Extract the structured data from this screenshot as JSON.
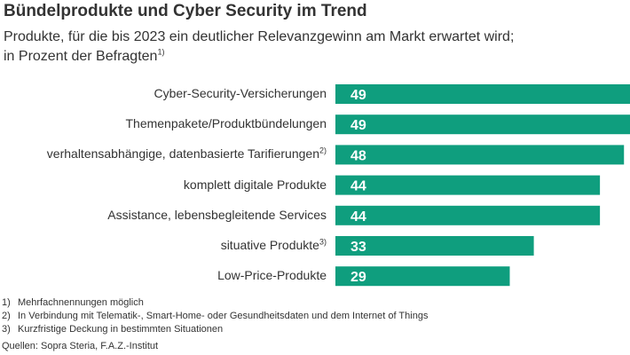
{
  "header": {
    "title": "Bündelprodukte und Cyber Security im Trend",
    "subtitle_line1": "Produkte, für die bis 2023 ein deutlicher Relevanzgewinn am Markt erwartet wird;",
    "subtitle_line2": "in Prozent der Befragten",
    "subtitle_sup": "1)"
  },
  "chart_data": {
    "type": "bar",
    "orientation": "horizontal",
    "categories": [
      "Cyber-Security-Versicherungen",
      "Themenpakete/Produktbündelungen",
      "verhaltensabhängige, datenbasierte Tarifierungen",
      "komplett digitale Produkte",
      "Assistance, lebensbegleitende Services",
      "situative Produkte",
      "Low-Price-Produkte"
    ],
    "category_superscripts": [
      "",
      "",
      "2)",
      "",
      "",
      "3)",
      ""
    ],
    "values": [
      49,
      49,
      48,
      44,
      44,
      33,
      29
    ],
    "bar_color": "#0f9e7e",
    "value_label_color": "#ffffff",
    "xlim": [
      0,
      49
    ],
    "grid": false,
    "legend": false
  },
  "footnotes": [
    {
      "num": "1)",
      "text": "Mehrfachnennungen möglich"
    },
    {
      "num": "2)",
      "text": "In Verbindung mit Telematik-, Smart-Home- oder Gesundheitsdaten und dem Internet of Things"
    },
    {
      "num": "3)",
      "text": "Kurzfristige Deckung in bestimmten Situationen"
    }
  ],
  "source": "Quellen: Sopra Steria, F.A.Z.-Institut"
}
